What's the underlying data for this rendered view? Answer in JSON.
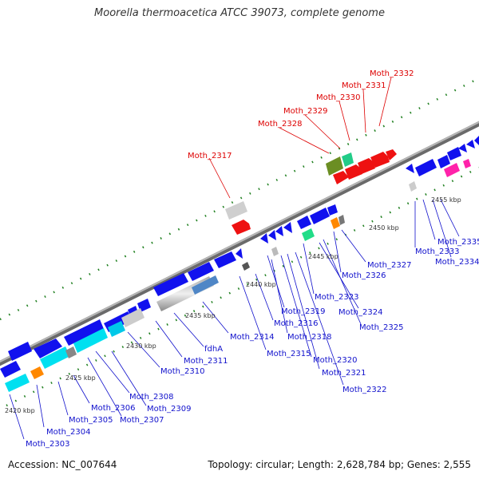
{
  "title": "Moorella thermoacetica ATCC 39073, complete genome",
  "footer": {
    "accession": "Accession: NC_007644",
    "stats": "Topology: circular; Length: 2,628,784 bp; Genes: 2,555"
  },
  "colors": {
    "backbone": "#8c8c8c",
    "forward_gene_label": "#dd0000",
    "gene_label": "#1010cc",
    "tick": "#208020"
  },
  "scale_labels": [
    "2420 kbp",
    "2425 kbp",
    "2430 kbp",
    "2435 kbp",
    "2440 kbp",
    "2445 kbp",
    "2450 kbp",
    "2455 kbp"
  ],
  "genes_forward": [
    "Moth_2317",
    "Moth_2328",
    "Moth_2329",
    "Moth_2330",
    "Moth_2331",
    "Moth_2332"
  ],
  "genes_reverse": [
    "Moth_2303",
    "Moth_2304",
    "Moth_2305",
    "Moth_2306",
    "Moth_2307",
    "Moth_2308",
    "Moth_2309",
    "Moth_2310",
    "fdhA",
    "Moth_2311",
    "Moth_2314",
    "Moth_2315",
    "Moth_2316",
    "Moth_2318",
    "Moth_2319",
    "Moth_2320",
    "Moth_2321",
    "Moth_2322",
    "Moth_2323",
    "Moth_2324",
    "Moth_2325",
    "Moth_2326",
    "Moth_2327",
    "Moth_2333",
    "Moth_2334",
    "Moth_2335"
  ]
}
